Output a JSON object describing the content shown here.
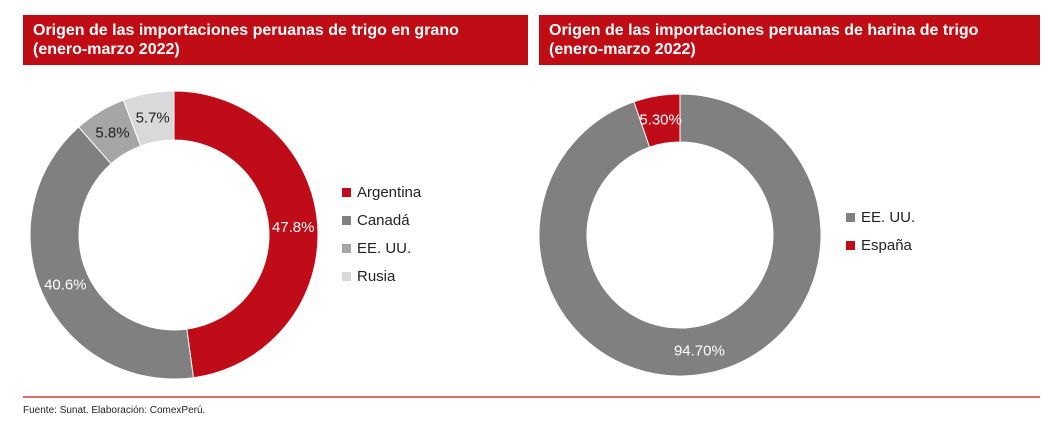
{
  "charts": {
    "left": {
      "title_line1": "Origen de las importaciones  peruanas de trigo en grano",
      "title_line2": "(enero-marzo 2022)"
    },
    "right": {
      "title_line1": "Origen de las importaciones  peruanas de harina de trigo",
      "title_line2": "(enero-marzo 2022)"
    }
  },
  "chart_data": [
    {
      "type": "pie",
      "donut": true,
      "title": "Origen de las importaciones  peruanas de trigo en grano (enero-marzo 2022)",
      "categories": [
        "Argentina",
        "Canadá",
        "EE. UU.",
        "Rusia"
      ],
      "values": [
        47.8,
        40.6,
        5.8,
        5.7
      ],
      "data_labels": [
        "47.8%",
        "40.6%",
        "5.8%",
        "5.7%"
      ],
      "colors": [
        "#c00c18",
        "#808080",
        "#a6a6a6",
        "#d9d9d9"
      ],
      "label_colors": [
        "#ffffff",
        "#ffffff",
        "#222222",
        "#222222"
      ],
      "legend_placement": "right"
    },
    {
      "type": "pie",
      "donut": true,
      "title": "Origen de las importaciones  peruanas de harina de trigo (enero-marzo 2022)",
      "categories": [
        "EE. UU.",
        "España"
      ],
      "values": [
        94.7,
        5.3
      ],
      "data_labels": [
        "94.70%",
        "5.30%"
      ],
      "colors": [
        "#808080",
        "#c00c18"
      ],
      "label_colors": [
        "#ffffff",
        "#ffffff"
      ],
      "legend_placement": "right",
      "clockwise_start_value": 5.3
    }
  ],
  "footer": {
    "source": "Fuente: Sunat. Elaboración: ComexPerú."
  }
}
